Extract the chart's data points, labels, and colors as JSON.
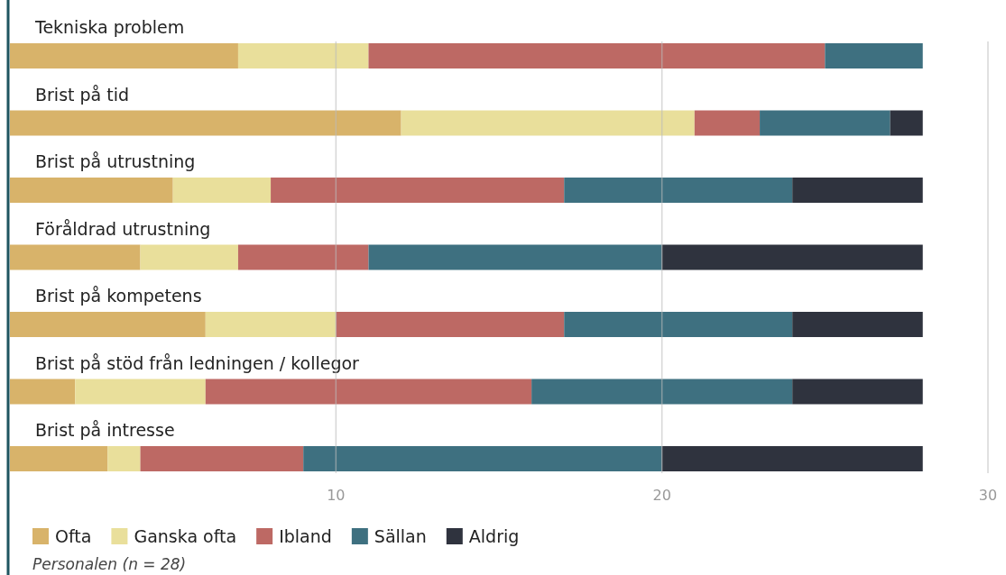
{
  "chart_data": {
    "type": "bar",
    "orientation": "horizontal",
    "stacked": true,
    "categories": [
      "Tekniska problem",
      "Brist på tid",
      "Brist på utrustning",
      "Föråldrad utrustning",
      "Brist på kompetens",
      "Brist på stöd från ledningen / kollegor",
      "Brist på intresse"
    ],
    "series": [
      {
        "name": "Ofta",
        "color": "#d8b36a",
        "values": [
          7,
          12,
          5,
          4,
          6,
          2,
          3
        ]
      },
      {
        "name": "Ganska ofta",
        "color": "#e9df9b",
        "values": [
          4,
          9,
          3,
          3,
          4,
          4,
          1
        ]
      },
      {
        "name": "Ibland",
        "color": "#bd6964",
        "values": [
          14,
          2,
          9,
          4,
          7,
          10,
          5
        ]
      },
      {
        "name": "Sällan",
        "color": "#3e7080",
        "values": [
          3,
          4,
          7,
          9,
          7,
          8,
          11
        ]
      },
      {
        "name": "Aldrig",
        "color": "#2f333e",
        "values": [
          0,
          1,
          4,
          8,
          4,
          4,
          8
        ]
      }
    ],
    "xlim": [
      0,
      30
    ],
    "xticks": [
      10,
      20,
      30
    ],
    "grid": "x",
    "legend": "bottom left",
    "annotations": [
      "Personalen (n = 28)"
    ]
  }
}
